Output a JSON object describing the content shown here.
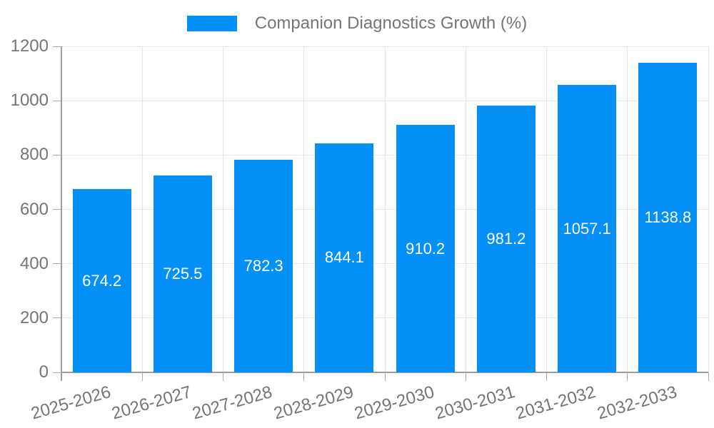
{
  "chart_data": {
    "type": "bar",
    "title": "Companion Diagnostics Growth (%)",
    "categories": [
      "2025-2026",
      "2026-2027",
      "2027-2028",
      "2028-2029",
      "2029-2030",
      "2030-2031",
      "2031-2032",
      "2032-2033"
    ],
    "values": [
      674.2,
      725.5,
      782.3,
      844.1,
      910.2,
      981.2,
      1057.1,
      1138.8
    ],
    "value_labels": [
      "674.2",
      "725.5",
      "782.3",
      "844.1",
      "910.2",
      "981.2",
      "1057.1",
      "1138.8"
    ],
    "xlabel": "",
    "ylabel": "",
    "ylim": [
      0,
      1200
    ],
    "yticks": [
      0,
      200,
      400,
      600,
      800,
      1000,
      1200
    ],
    "grid": true,
    "legend_position": "top-center",
    "colors": {
      "bar": "#0590f8",
      "value_label": "#ffffff",
      "axis_text": "#757575",
      "gridline": "#e6e6e6",
      "axis_line": "#9e9e9e",
      "tick": "#ababab",
      "background": "#ffffff"
    }
  }
}
